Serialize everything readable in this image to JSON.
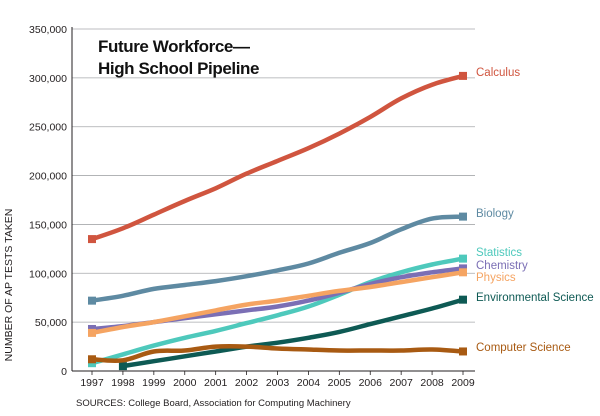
{
  "chart_data": {
    "type": "line",
    "title": "Future Workforce—",
    "subtitle": "High School Pipeline",
    "xlabel": "",
    "ylabel": "NUMBER OF AP TESTS TAKEN",
    "source": "SOURCES: College Board, Association for Computing Machinery",
    "x": [
      1997,
      1998,
      1999,
      2000,
      2001,
      2002,
      2003,
      2004,
      2005,
      2006,
      2007,
      2008,
      2009
    ],
    "x_tick_labels": [
      "1997",
      "1998",
      "1999",
      "2000",
      "2001",
      "2002",
      "2003",
      "2004",
      "2005",
      "2006",
      "2007",
      "2008",
      "2009"
    ],
    "ylim": [
      0,
      350000
    ],
    "y_ticks": [
      0,
      50000,
      100000,
      150000,
      200000,
      250000,
      300000,
      350000
    ],
    "y_tick_labels": [
      "0",
      "50,000",
      "100,000",
      "150,000",
      "200,000",
      "250,000",
      "300,000",
      "350,000"
    ],
    "grid": true,
    "legend": "inline labels at right end of each line",
    "series": [
      {
        "name": "Calculus",
        "color": "#d0553f",
        "values": [
          135000,
          146000,
          160000,
          174000,
          187000,
          202000,
          215000,
          228000,
          243000,
          260000,
          279000,
          293000,
          302000
        ]
      },
      {
        "name": "Biology",
        "color": "#5e8aa2",
        "values": [
          72000,
          77000,
          84000,
          88000,
          92000,
          97000,
          103000,
          110000,
          121000,
          131000,
          145000,
          156000,
          158000
        ]
      },
      {
        "name": "Statistics",
        "color": "#4ec9bc",
        "values": [
          8000,
          17000,
          26000,
          34000,
          41000,
          49000,
          57000,
          66000,
          78000,
          91000,
          101000,
          109000,
          115000
        ]
      },
      {
        "name": "Chemistry",
        "color": "#7b6fb5",
        "values": [
          43000,
          46000,
          50000,
          54000,
          58000,
          62000,
          66000,
          72000,
          80000,
          89000,
          96000,
          101000,
          105000
        ]
      },
      {
        "name": "Physics",
        "color": "#f5a462",
        "values": [
          39000,
          45000,
          50000,
          56000,
          62000,
          68000,
          72000,
          77000,
          82000,
          86000,
          91000,
          96000,
          101000
        ]
      },
      {
        "name": "Environmental Science",
        "color": "#0e5a54",
        "values": [
          null,
          5000,
          10000,
          15000,
          20000,
          25000,
          29000,
          34000,
          40000,
          48000,
          56000,
          64000,
          73000
        ]
      },
      {
        "name": "Computer Science",
        "color": "#a85a12",
        "values": [
          12000,
          11000,
          20000,
          21000,
          25000,
          25000,
          23000,
          22000,
          21000,
          21000,
          21000,
          22000,
          20000
        ]
      }
    ]
  }
}
